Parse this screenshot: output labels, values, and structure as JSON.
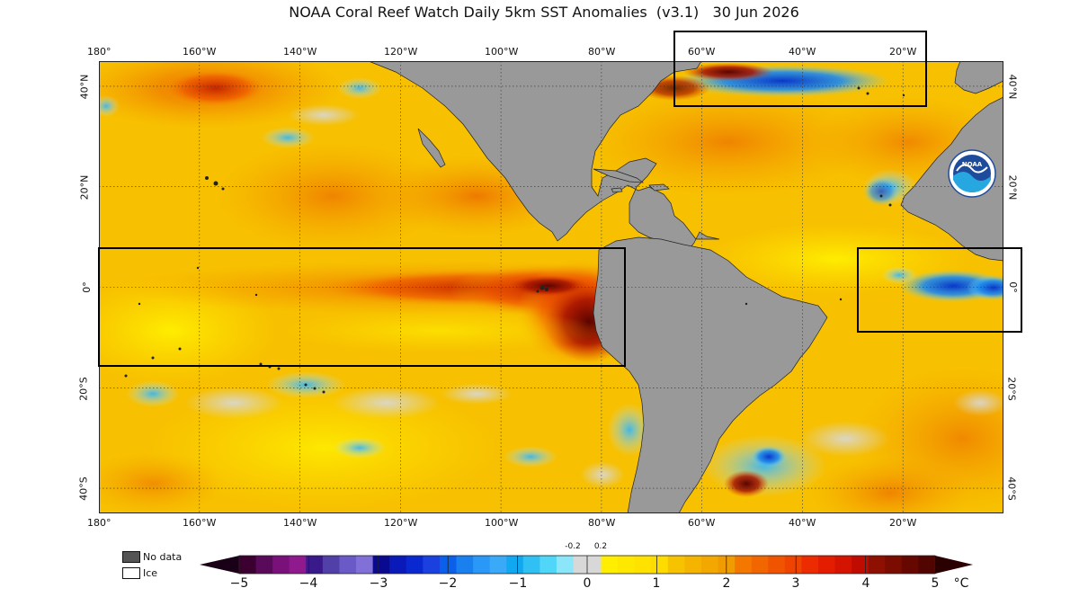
{
  "title": "NOAA Coral Reef Watch Daily 5km SST Anomalies  (v3.1)   30 Jun 2026",
  "map": {
    "lon_range": [
      -180,
      0
    ],
    "lat_range": [
      -45,
      45
    ],
    "top_lon_labels": [
      "180°",
      "160°W",
      "140°W",
      "120°W",
      "100°W",
      "80°W",
      "60°W",
      "40°W",
      "20°W"
    ],
    "bottom_lon_labels": [
      "180°",
      "160°W",
      "140°W",
      "120°W",
      "100°W",
      "80°W",
      "60°W",
      "40°W",
      "20°W"
    ],
    "left_lat_labels": [
      "40°N",
      "20°N",
      "0°",
      "20°S",
      "40°S"
    ],
    "right_lat_labels": [
      "40°N",
      "20°N",
      "0°",
      "20°S",
      "40°S"
    ],
    "land_color": "#999999",
    "ocean_base_color": "#f7c200",
    "highlight_boxes": [
      "North Atlantic",
      "Equatorial Eastern Pacific",
      "Gulf of Guinea"
    ],
    "logo_text": "NOAA"
  },
  "legend": {
    "no_data_label": "No data",
    "ice_label": "Ice",
    "no_data_color": "#555555",
    "ice_color": "#ffffff"
  },
  "colorbar": {
    "unit": "°C",
    "tick_labels": [
      "−5",
      "−4",
      "−3",
      "−2",
      "−1",
      "0",
      "1",
      "2",
      "3",
      "4",
      "5"
    ],
    "small_labels": [
      "-0.2",
      "0.2"
    ],
    "min_arrow_color": "#1a0016",
    "max_arrow_color": "#2a0000"
  }
}
